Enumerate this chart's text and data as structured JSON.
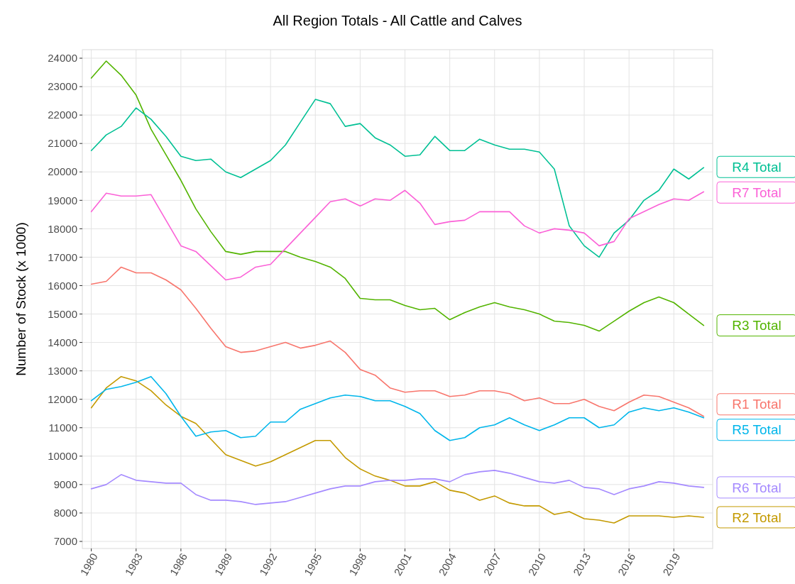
{
  "chart_data": {
    "type": "line",
    "title": "All Region Totals - All Cattle and Calves",
    "ylabel": "Number of Stock (x 1000)",
    "x": [
      1980,
      1981,
      1982,
      1983,
      1984,
      1985,
      1986,
      1987,
      1988,
      1989,
      1990,
      1991,
      1992,
      1993,
      1994,
      1995,
      1996,
      1997,
      1998,
      1999,
      2000,
      2001,
      2002,
      2003,
      2004,
      2005,
      2006,
      2007,
      2008,
      2009,
      2010,
      2011,
      2012,
      2013,
      2014,
      2015,
      2016,
      2017,
      2018,
      2019,
      2020,
      2021
    ],
    "xlim": [
      1979.4,
      2021.6
    ],
    "xticks": [
      1980,
      1983,
      1986,
      1989,
      1992,
      1995,
      1998,
      2001,
      2004,
      2007,
      2010,
      2013,
      2016,
      2019
    ],
    "ylim": [
      6750,
      24300
    ],
    "yticks": [
      7000,
      8000,
      9000,
      10000,
      11000,
      12000,
      13000,
      14000,
      15000,
      16000,
      17000,
      18000,
      19000,
      20000,
      21000,
      22000,
      23000,
      24000
    ],
    "grid": true,
    "line_style": "solid",
    "series": [
      {
        "name": "R1 Total",
        "color": "#f8766d",
        "values": [
          16050,
          16150,
          16650,
          16450,
          16450,
          16200,
          15850,
          15200,
          14500,
          13850,
          13650,
          13700,
          13850,
          14000,
          13800,
          13900,
          14050,
          13650,
          13050,
          12850,
          12400,
          12250,
          12300,
          12300,
          12100,
          12150,
          12300,
          12300,
          12200,
          11950,
          12050,
          11850,
          11850,
          12000,
          11750,
          11600,
          11900,
          12150,
          12100,
          11900,
          11700,
          11400
        ]
      },
      {
        "name": "R2 Total",
        "color": "#c49a00",
        "values": [
          11700,
          12400,
          12800,
          12650,
          12300,
          11800,
          11400,
          11150,
          10600,
          10050,
          9850,
          9650,
          9800,
          10050,
          10300,
          10550,
          10550,
          9950,
          9550,
          9300,
          9150,
          8950,
          8950,
          9100,
          8800,
          8700,
          8450,
          8600,
          8350,
          8250,
          8250,
          7950,
          8050,
          7800,
          7750,
          7650,
          7900,
          7900,
          7900,
          7850,
          7900,
          7850
        ]
      },
      {
        "name": "R3 Total",
        "color": "#53b400",
        "values": [
          23300,
          23900,
          23400,
          22700,
          21500,
          20600,
          19700,
          18700,
          17900,
          17200,
          17100,
          17200,
          17200,
          17200,
          17000,
          16850,
          16650,
          16250,
          15550,
          15500,
          15500,
          15300,
          15150,
          15200,
          14800,
          15050,
          15250,
          15400,
          15250,
          15150,
          15000,
          14750,
          14700,
          14600,
          14400,
          14750,
          15100,
          15400,
          15600,
          15400,
          15000,
          14600
        ]
      },
      {
        "name": "R4 Total",
        "color": "#00c094",
        "values": [
          20750,
          21300,
          21600,
          22250,
          21850,
          21250,
          20550,
          20400,
          20450,
          20000,
          19800,
          20100,
          20400,
          20950,
          21750,
          22550,
          22400,
          21600,
          21700,
          21200,
          20950,
          20550,
          20600,
          21250,
          20750,
          20750,
          21150,
          20950,
          20800,
          20800,
          20700,
          20100,
          18100,
          17400,
          17000,
          17850,
          18300,
          19000,
          19350,
          20100,
          19750,
          20150
        ]
      },
      {
        "name": "R5 Total",
        "color": "#00b6eb",
        "values": [
          11950,
          12350,
          12450,
          12600,
          12800,
          12200,
          11400,
          10700,
          10850,
          10900,
          10650,
          10700,
          11200,
          11200,
          11650,
          11850,
          12050,
          12150,
          12100,
          11950,
          11950,
          11750,
          11500,
          10900,
          10550,
          10650,
          11000,
          11100,
          11350,
          11100,
          10900,
          11100,
          11350,
          11350,
          11000,
          11100,
          11550,
          11700,
          11600,
          11700,
          11550,
          11350
        ]
      },
      {
        "name": "R6 Total",
        "color": "#a58aff",
        "values": [
          8850,
          9000,
          9350,
          9150,
          9100,
          9050,
          9050,
          8650,
          8450,
          8450,
          8400,
          8300,
          8350,
          8400,
          8550,
          8700,
          8850,
          8950,
          8950,
          9100,
          9150,
          9150,
          9200,
          9200,
          9100,
          9350,
          9450,
          9500,
          9400,
          9250,
          9100,
          9050,
          9150,
          8900,
          8850,
          8650,
          8850,
          8950,
          9100,
          9050,
          8950,
          8900
        ]
      },
      {
        "name": "R7 Total",
        "color": "#fb61d7",
        "values": [
          18600,
          19250,
          19150,
          19150,
          19200,
          18300,
          17400,
          17200,
          16700,
          16200,
          16300,
          16650,
          16750,
          17300,
          17850,
          18400,
          18950,
          19050,
          18800,
          19050,
          19000,
          19350,
          18900,
          18150,
          18250,
          18300,
          18600,
          18600,
          18600,
          18100,
          17850,
          18000,
          17950,
          17850,
          17400,
          17550,
          18350,
          18600,
          18850,
          19050,
          19000,
          19300
        ]
      }
    ]
  }
}
